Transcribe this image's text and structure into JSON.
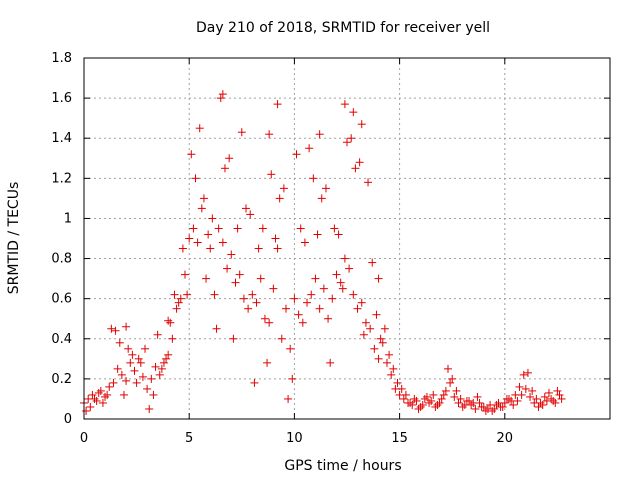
{
  "chart_data": {
    "type": "scatter",
    "title": "Day 210 of 2018, SRMTID for receiver yell",
    "xlabel": "GPS time / hours",
    "ylabel": "SRMTID / TECUs",
    "xlim": [
      0,
      25
    ],
    "ylim": [
      0,
      1.8
    ],
    "x_ticks": [
      0,
      5,
      10,
      15,
      20
    ],
    "y_ticks": [
      0,
      0.2,
      0.4,
      0.6,
      0.8,
      1,
      1.2,
      1.4,
      1.6,
      1.8
    ],
    "x_tick_labels": [
      "0",
      "5",
      "10",
      "15",
      "20"
    ],
    "y_tick_labels": [
      "0",
      "0.2",
      "0.4",
      "0.6",
      "0.8",
      "1",
      "1.2",
      "1.4",
      "1.6",
      "1.8"
    ],
    "grid": true,
    "marker": "+",
    "marker_color": "#e00000",
    "series": [
      {
        "name": "SRMTID",
        "x": [
          0.0,
          0.2,
          0.4,
          0.6,
          0.8,
          1.0,
          1.2,
          1.4,
          1.6,
          1.8,
          2.0,
          2.2,
          2.4,
          2.6,
          2.8,
          3.0,
          3.2,
          3.4,
          3.6,
          3.8,
          4.0,
          4.2,
          4.4,
          4.6,
          4.8,
          5.0,
          5.2,
          5.4,
          5.6,
          5.8,
          6.0,
          6.2,
          6.4,
          6.6,
          6.8,
          7.0,
          7.2,
          7.4,
          7.6,
          7.8,
          8.0,
          8.2,
          8.4,
          8.6,
          8.8,
          9.0,
          9.2,
          9.4,
          9.6,
          9.8,
          10.0,
          10.2,
          10.4,
          10.6,
          10.8,
          11.0,
          11.2,
          11.4,
          11.6,
          11.8,
          12.0,
          12.2,
          12.4,
          12.6,
          12.8,
          13.0,
          13.2,
          13.4,
          13.6,
          13.8,
          14.0,
          14.2,
          14.4,
          14.6,
          14.8,
          15.0,
          15.2,
          15.4,
          15.6,
          15.8,
          16.0,
          16.2,
          16.4,
          16.6,
          16.8,
          17.0,
          17.2,
          17.4,
          17.6,
          17.8,
          18.0,
          18.2,
          18.4,
          18.6,
          18.8,
          19.0,
          19.2,
          19.4,
          19.6,
          19.8,
          20.0,
          20.2,
          20.4,
          20.6,
          20.8,
          21.0,
          21.2,
          21.4,
          21.6,
          21.8,
          22.0,
          22.2,
          22.4,
          22.6,
          6.5,
          6.6,
          9.2,
          12.4,
          12.8,
          5.5,
          7.5,
          4.0,
          2.0,
          1.5,
          11.2,
          8.8,
          13.2,
          14.0,
          17.3,
          21.1,
          3.1,
          4.9,
          5.1,
          6.9,
          7.7,
          8.5,
          9.3,
          9.9,
          10.7,
          11.5,
          12.1,
          12.9,
          13.5,
          14.3,
          0.1,
          0.3,
          0.5,
          0.7,
          0.9,
          1.1,
          1.3,
          1.7,
          1.9,
          2.1,
          2.3,
          2.5,
          2.7,
          2.9,
          3.3,
          3.5,
          3.7,
          3.9,
          4.1,
          4.3,
          4.5,
          4.7,
          5.3,
          5.7,
          5.9,
          6.1,
          6.3,
          6.7,
          7.1,
          7.3,
          7.9,
          8.1,
          8.3,
          8.7,
          8.9,
          9.1,
          9.5,
          9.7,
          10.1,
          10.3,
          10.5,
          10.9,
          11.1,
          11.3,
          11.7,
          11.9,
          12.3,
          12.5,
          12.7,
          13.1,
          13.3,
          13.7,
          13.9,
          14.1,
          14.5,
          14.7,
          14.9,
          15.1,
          15.3,
          15.5,
          15.7,
          15.9,
          16.1,
          16.3,
          16.5,
          16.7,
          16.9,
          17.1,
          17.5,
          17.7,
          17.9,
          18.1,
          18.3,
          18.5,
          18.7,
          18.9,
          19.1,
          19.3,
          19.5,
          19.7,
          19.9,
          20.1,
          20.3,
          20.5,
          20.7,
          20.9,
          21.3,
          21.5,
          21.7,
          21.9,
          22.1,
          22.3,
          22.5,
          22.7
        ],
        "y": [
          0.08,
          0.1,
          0.12,
          0.09,
          0.14,
          0.11,
          0.16,
          0.18,
          0.25,
          0.22,
          0.19,
          0.28,
          0.24,
          0.3,
          0.21,
          0.15,
          0.2,
          0.26,
          0.22,
          0.28,
          0.32,
          0.4,
          0.55,
          0.6,
          0.72,
          0.9,
          0.95,
          0.88,
          1.05,
          0.7,
          0.85,
          0.62,
          0.95,
          0.88,
          0.75,
          0.82,
          0.68,
          0.72,
          0.6,
          0.55,
          0.62,
          0.58,
          0.7,
          0.5,
          0.48,
          0.65,
          0.85,
          0.4,
          0.55,
          0.35,
          0.6,
          0.52,
          0.48,
          0.58,
          0.62,
          0.7,
          0.55,
          0.65,
          0.5,
          0.6,
          0.72,
          0.68,
          0.8,
          0.75,
          0.62,
          0.55,
          0.58,
          0.48,
          0.45,
          0.35,
          0.3,
          0.38,
          0.28,
          0.22,
          0.15,
          0.12,
          0.1,
          0.08,
          0.07,
          0.09,
          0.06,
          0.1,
          0.08,
          0.12,
          0.07,
          0.1,
          0.14,
          0.18,
          0.11,
          0.08,
          0.06,
          0.09,
          0.07,
          0.05,
          0.08,
          0.06,
          0.05,
          0.04,
          0.07,
          0.06,
          0.08,
          0.1,
          0.07,
          0.09,
          0.12,
          0.15,
          0.11,
          0.08,
          0.06,
          0.07,
          0.09,
          0.1,
          0.08,
          0.12,
          1.6,
          1.62,
          1.57,
          1.57,
          1.53,
          1.45,
          1.43,
          0.49,
          0.46,
          0.44,
          1.42,
          1.42,
          1.47,
          0.7,
          0.25,
          0.23,
          0.05,
          0.62,
          1.32,
          1.3,
          1.05,
          0.95,
          1.1,
          0.2,
          1.35,
          1.15,
          0.92,
          1.25,
          1.18,
          0.45,
          0.04,
          0.06,
          0.1,
          0.13,
          0.08,
          0.12,
          0.45,
          0.38,
          0.12,
          0.35,
          0.32,
          0.18,
          0.28,
          0.35,
          0.12,
          0.42,
          0.25,
          0.3,
          0.48,
          0.62,
          0.58,
          0.85,
          1.2,
          1.1,
          0.92,
          1.0,
          0.45,
          1.25,
          0.4,
          0.95,
          1.02,
          0.18,
          0.85,
          0.28,
          1.22,
          0.9,
          1.15,
          0.1,
          1.32,
          0.95,
          0.88,
          1.2,
          0.92,
          1.1,
          0.28,
          0.95,
          0.65,
          1.38,
          1.4,
          1.28,
          0.42,
          0.78,
          0.52,
          0.4,
          0.32,
          0.25,
          0.18,
          0.15,
          0.12,
          0.08,
          0.1,
          0.05,
          0.07,
          0.11,
          0.09,
          0.06,
          0.08,
          0.12,
          0.2,
          0.14,
          0.1,
          0.07,
          0.09,
          0.08,
          0.11,
          0.06,
          0.04,
          0.07,
          0.05,
          0.08,
          0.06,
          0.1,
          0.09,
          0.12,
          0.16,
          0.22,
          0.14,
          0.1,
          0.08,
          0.11,
          0.13,
          0.09,
          0.14,
          0.1
        ]
      }
    ]
  }
}
